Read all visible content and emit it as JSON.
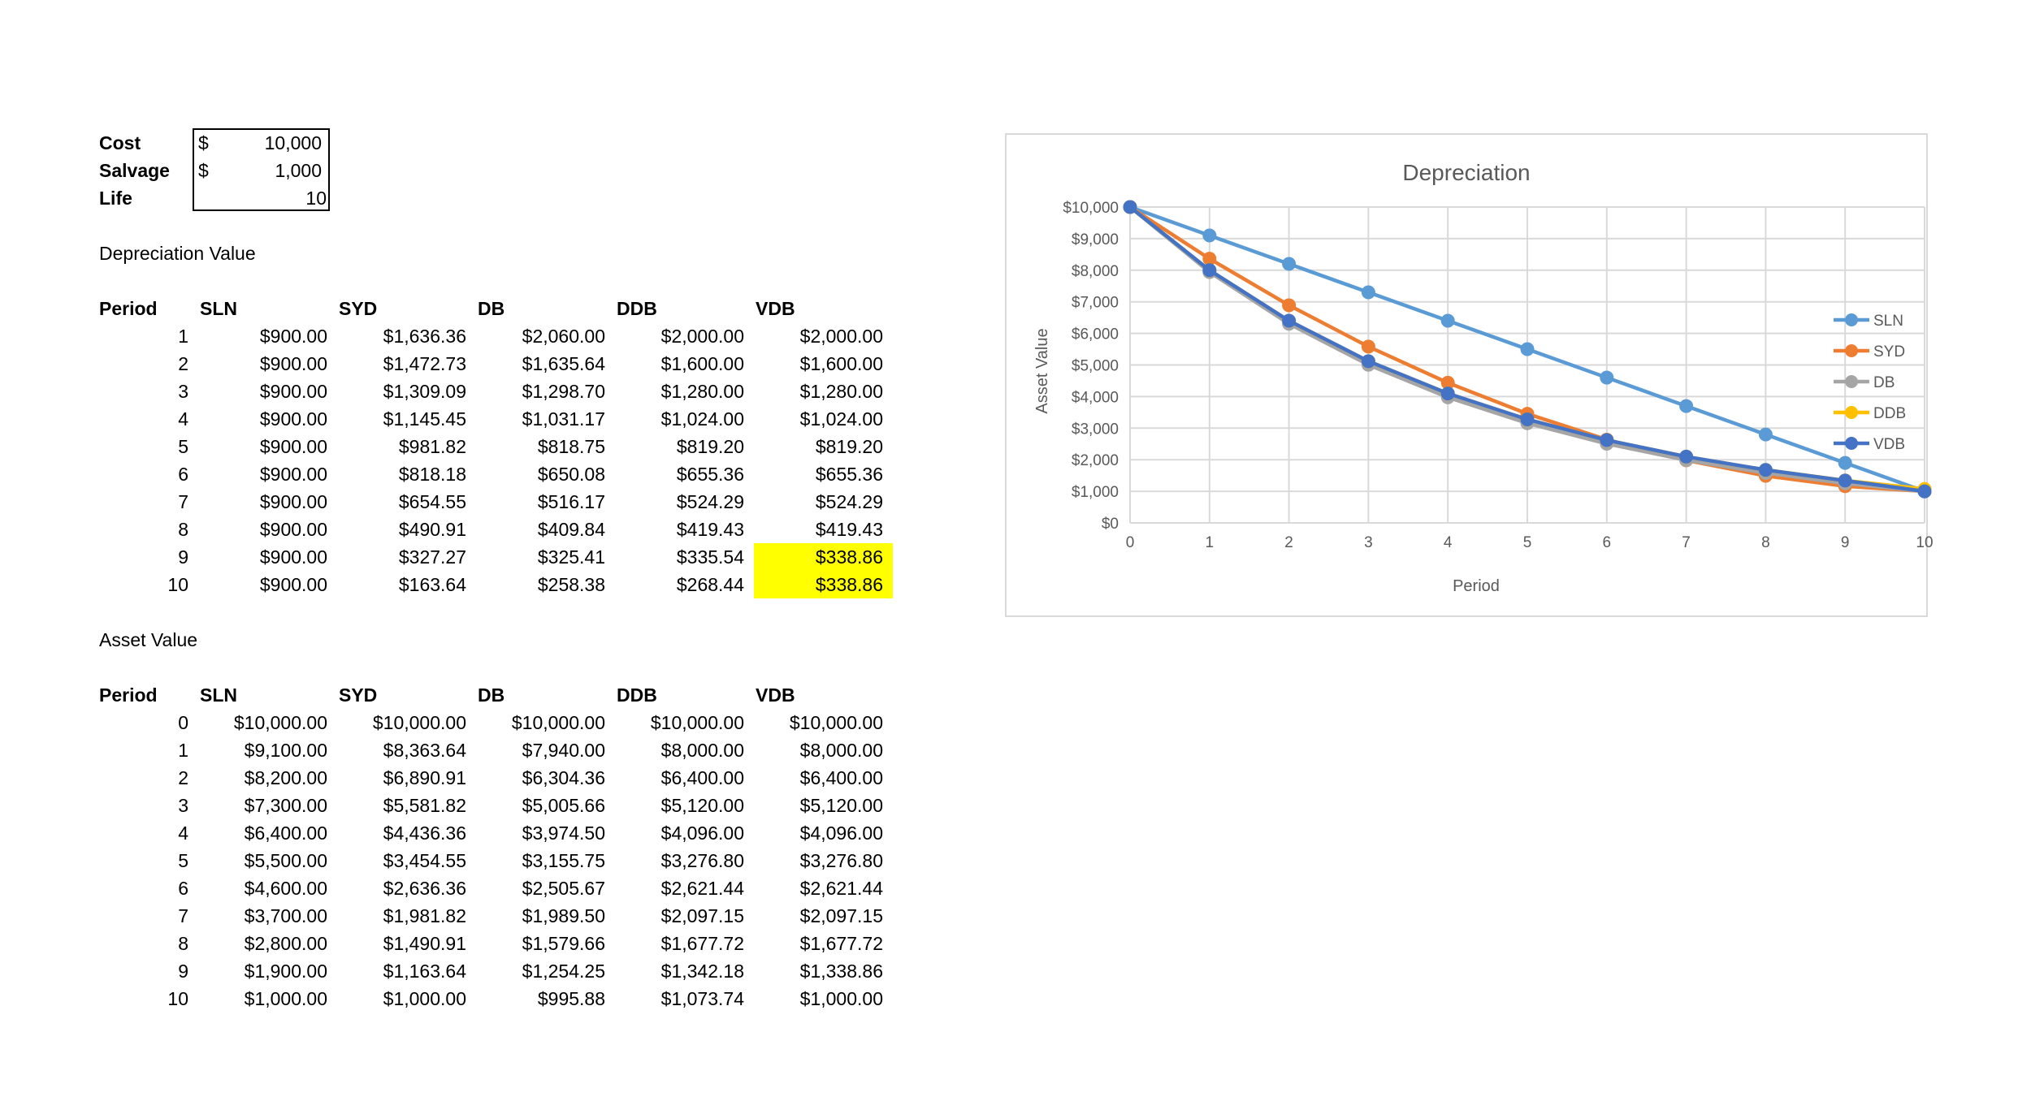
{
  "inputs": {
    "cost_label": "Cost",
    "cost_currency": "$",
    "cost_value": "10,000",
    "salvage_label": "Salvage",
    "salvage_currency": "$",
    "salvage_value": "1,000",
    "life_label": "Life",
    "life_value": "10"
  },
  "depreciation": {
    "section_title": "Depreciation Value",
    "headers": [
      "Period",
      "SLN",
      "SYD",
      "DB",
      "DDB",
      "VDB"
    ],
    "rows": [
      [
        "1",
        "$900.00",
        "$1,636.36",
        "$2,060.00",
        "$2,000.00",
        "$2,000.00"
      ],
      [
        "2",
        "$900.00",
        "$1,472.73",
        "$1,635.64",
        "$1,600.00",
        "$1,600.00"
      ],
      [
        "3",
        "$900.00",
        "$1,309.09",
        "$1,298.70",
        "$1,280.00",
        "$1,280.00"
      ],
      [
        "4",
        "$900.00",
        "$1,145.45",
        "$1,031.17",
        "$1,024.00",
        "$1,024.00"
      ],
      [
        "5",
        "$900.00",
        "$981.82",
        "$818.75",
        "$819.20",
        "$819.20"
      ],
      [
        "6",
        "$900.00",
        "$818.18",
        "$650.08",
        "$655.36",
        "$655.36"
      ],
      [
        "7",
        "$900.00",
        "$654.55",
        "$516.17",
        "$524.29",
        "$524.29"
      ],
      [
        "8",
        "$900.00",
        "$490.91",
        "$409.84",
        "$419.43",
        "$419.43"
      ],
      [
        "9",
        "$900.00",
        "$327.27",
        "$325.41",
        "$335.54",
        "$338.86"
      ],
      [
        "10",
        "$900.00",
        "$163.64",
        "$258.38",
        "$268.44",
        "$338.86"
      ]
    ],
    "highlight_color": "#ffff00"
  },
  "asset": {
    "section_title": "Asset Value",
    "headers": [
      "Period",
      "SLN",
      "SYD",
      "DB",
      "DDB",
      "VDB"
    ],
    "rows": [
      [
        "0",
        "$10,000.00",
        "$10,000.00",
        "$10,000.00",
        "$10,000.00",
        "$10,000.00"
      ],
      [
        "1",
        "$9,100.00",
        "$8,363.64",
        "$7,940.00",
        "$8,000.00",
        "$8,000.00"
      ],
      [
        "2",
        "$8,200.00",
        "$6,890.91",
        "$6,304.36",
        "$6,400.00",
        "$6,400.00"
      ],
      [
        "3",
        "$7,300.00",
        "$5,581.82",
        "$5,005.66",
        "$5,120.00",
        "$5,120.00"
      ],
      [
        "4",
        "$6,400.00",
        "$4,436.36",
        "$3,974.50",
        "$4,096.00",
        "$4,096.00"
      ],
      [
        "5",
        "$5,500.00",
        "$3,454.55",
        "$3,155.75",
        "$3,276.80",
        "$3,276.80"
      ],
      [
        "6",
        "$4,600.00",
        "$2,636.36",
        "$2,505.67",
        "$2,621.44",
        "$2,621.44"
      ],
      [
        "7",
        "$3,700.00",
        "$1,981.82",
        "$1,989.50",
        "$2,097.15",
        "$2,097.15"
      ],
      [
        "8",
        "$2,800.00",
        "$1,490.91",
        "$1,579.66",
        "$1,677.72",
        "$1,677.72"
      ],
      [
        "9",
        "$1,900.00",
        "$1,163.64",
        "$1,254.25",
        "$1,342.18",
        "$1,338.86"
      ],
      [
        "10",
        "$1,000.00",
        "$1,000.00",
        "$995.88",
        "$1,073.74",
        "$1,000.00"
      ]
    ]
  },
  "chart_data": {
    "type": "line",
    "title": "Depreciation",
    "xlabel": "Period",
    "ylabel": "Asset Value",
    "x": [
      0,
      1,
      2,
      3,
      4,
      5,
      6,
      7,
      8,
      9,
      10
    ],
    "xlim": [
      0,
      10
    ],
    "ylim": [
      0,
      10000
    ],
    "y_ticks": [
      "$0",
      "$1,000",
      "$2,000",
      "$3,000",
      "$4,000",
      "$5,000",
      "$6,000",
      "$7,000",
      "$8,000",
      "$9,000",
      "$10,000"
    ],
    "grid": true,
    "legend": "right",
    "series": [
      {
        "name": "SLN",
        "color": "#5b9bd5",
        "values": [
          10000,
          9100,
          8200,
          7300,
          6400,
          5500,
          4600,
          3700,
          2800,
          1900,
          1000
        ]
      },
      {
        "name": "SYD",
        "color": "#ed7d31",
        "values": [
          10000,
          8363.64,
          6890.91,
          5581.82,
          4436.36,
          3454.55,
          2636.36,
          1981.82,
          1490.91,
          1163.64,
          1000
        ]
      },
      {
        "name": "DB",
        "color": "#a5a5a5",
        "values": [
          10000,
          7940,
          6304.36,
          5005.66,
          3974.5,
          3155.75,
          2505.67,
          1989.5,
          1579.66,
          1254.25,
          995.88
        ]
      },
      {
        "name": "DDB",
        "color": "#ffc000",
        "values": [
          10000,
          8000,
          6400,
          5120,
          4096,
          3276.8,
          2621.44,
          2097.15,
          1677.72,
          1342.18,
          1073.74
        ]
      },
      {
        "name": "VDB",
        "color": "#4472c4",
        "values": [
          10000,
          8000,
          6400,
          5120,
          4096,
          3276.8,
          2621.44,
          2097.15,
          1677.72,
          1338.86,
          1000
        ]
      }
    ]
  }
}
